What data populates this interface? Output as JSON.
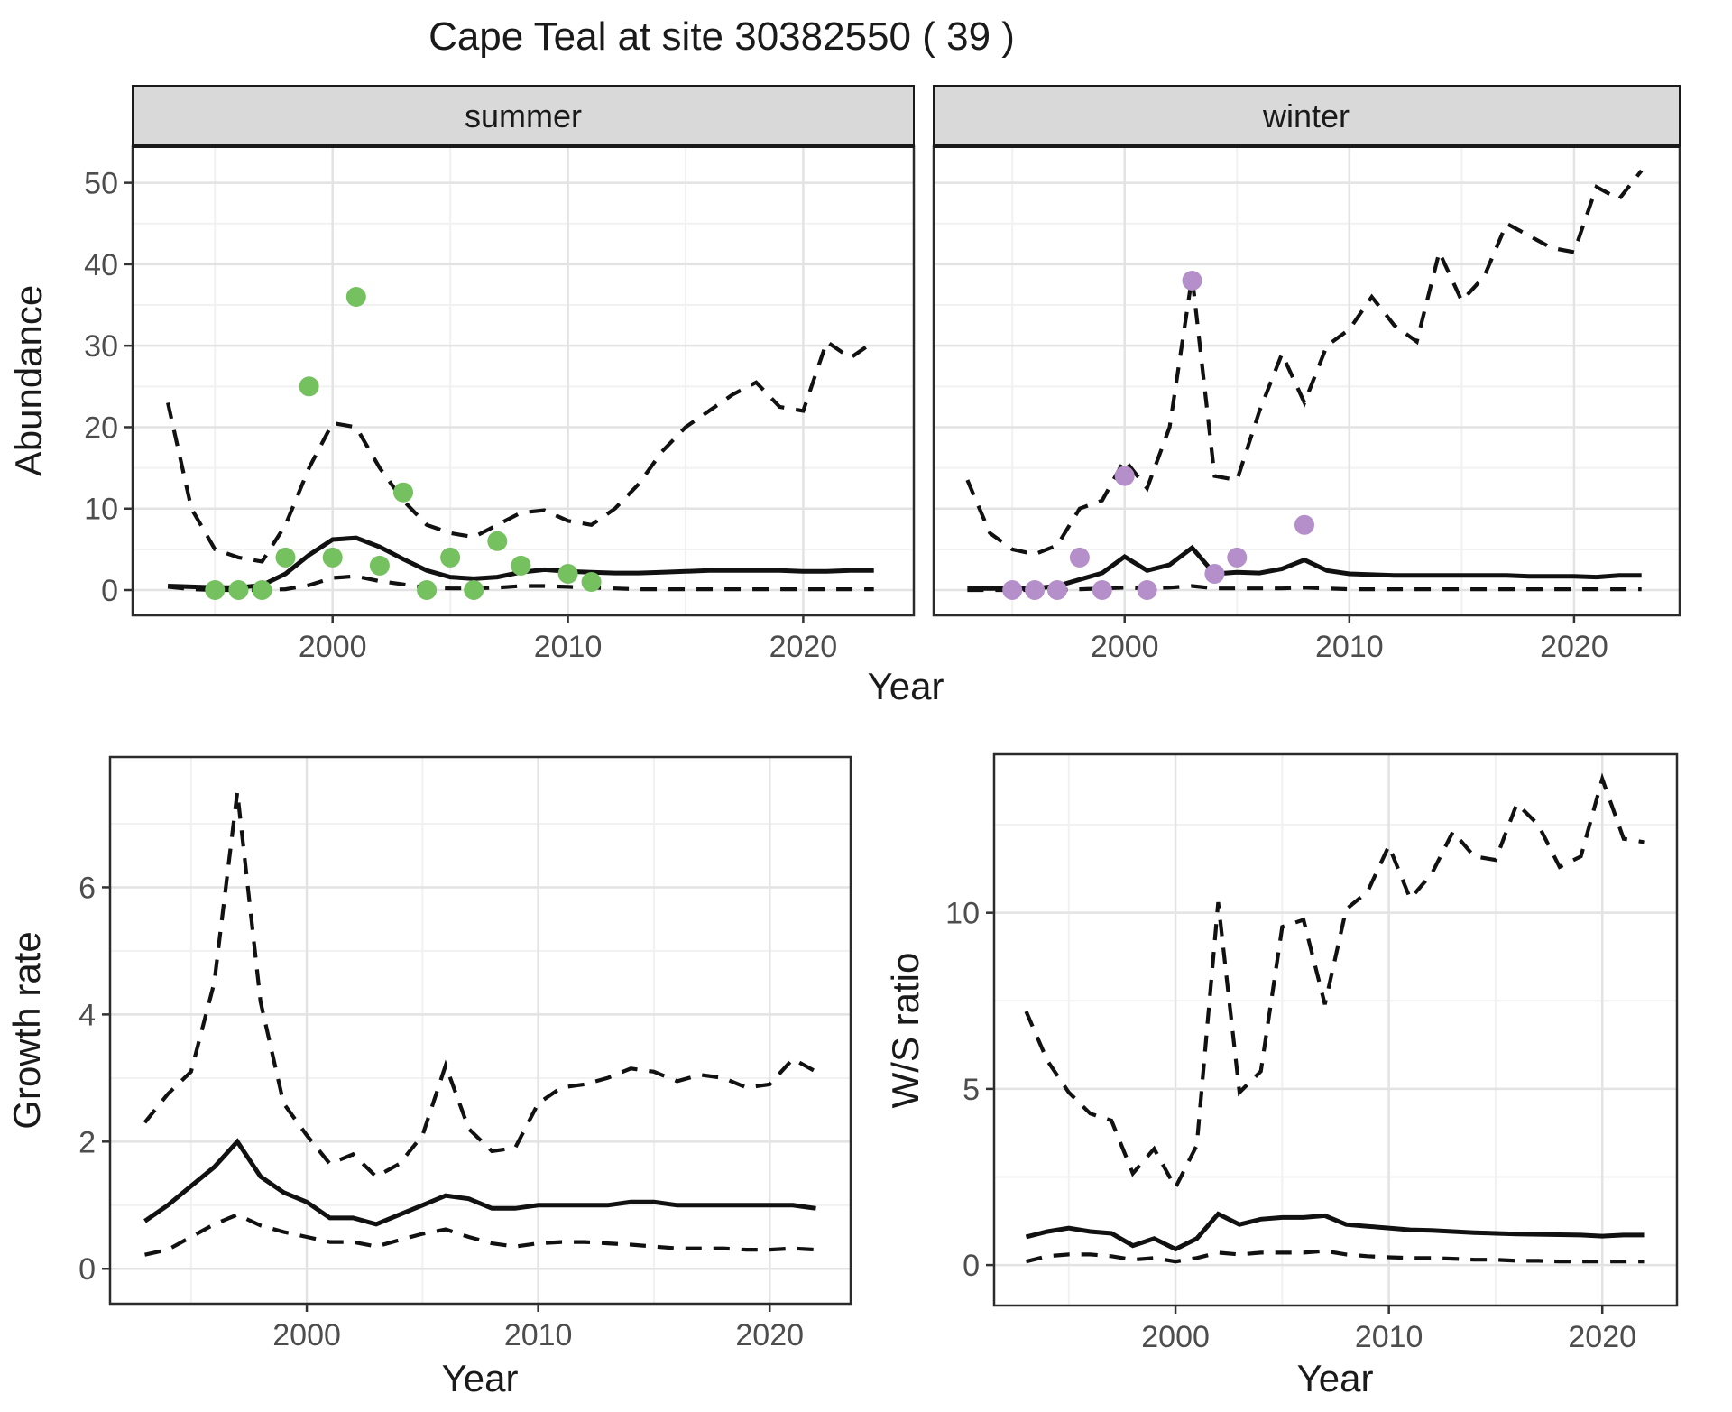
{
  "figure": {
    "title": "Cape Teal at site 30382550 ( 39 )"
  },
  "axes": {
    "top_y_label": "Abundance",
    "top_x_label": "Year",
    "bottom_left_y_label": "Growth rate",
    "bottom_left_x_label": "Year",
    "bottom_right_y_label": "W/S ratio",
    "bottom_right_x_label": "Year"
  },
  "style": {
    "point_color_summer": "#75C05F",
    "point_color_winter": "#B58FC9",
    "line_color": "#111111",
    "grid_major_color": "#E3E3E3",
    "grid_minor_color": "#F1F1F1",
    "panel_border_color": "#2B2B2B",
    "strip_fill": "#D9D9D9",
    "strip_border": "#1A1A1A",
    "tick_color": "#333333",
    "tick_label_color": "#4D4D4D",
    "panel_bg": "#FFFFFF"
  },
  "chart_data": [
    {
      "id": "abundance-summer",
      "type": "line",
      "facet": "summer",
      "ylabel": "Abundance",
      "xlabel": "Year",
      "xlim": [
        1991.5,
        2024.7
      ],
      "ylim": [
        -3.1,
        54.5
      ],
      "xticks": [
        2000,
        2010,
        2020
      ],
      "xminor": [
        1995,
        2005,
        2015
      ],
      "yticks": [
        0,
        10,
        20,
        30,
        40,
        50
      ],
      "yminor": [
        5,
        15,
        25,
        35,
        45
      ],
      "show_y_tick_labels": true,
      "x": [
        1993,
        1994,
        1995,
        1996,
        1997,
        1998,
        1999,
        2000,
        2001,
        2002,
        2003,
        2004,
        2005,
        2006,
        2007,
        2008,
        2009,
        2010,
        2011,
        2012,
        2013,
        2014,
        2015,
        2016,
        2017,
        2018,
        2019,
        2020,
        2021,
        2022,
        2023
      ],
      "series": [
        {
          "name": "lower_ci",
          "style": "dashed",
          "values": [
            0.4,
            0.1,
            0,
            0,
            0,
            0.1,
            0.6,
            1.5,
            1.7,
            1.1,
            0.7,
            0.3,
            0.2,
            0.2,
            0.3,
            0.5,
            0.5,
            0.4,
            0.3,
            0.2,
            0.1,
            0.1,
            0.1,
            0.1,
            0.1,
            0.1,
            0.1,
            0.1,
            0.1,
            0.1,
            0.1
          ]
        },
        {
          "name": "upper_ci",
          "style": "dashed",
          "values": [
            23,
            10,
            5,
            4,
            3.5,
            8,
            15,
            20.5,
            20,
            15,
            11,
            8,
            7,
            6.5,
            8,
            9.5,
            9.8,
            8.5,
            8,
            10,
            13,
            17,
            20,
            22,
            24,
            25.5,
            22.5,
            22,
            30.5,
            28.5,
            30.5
          ]
        },
        {
          "name": "model_fit",
          "style": "solid",
          "values": [
            0.5,
            0.4,
            0.3,
            0.3,
            0.6,
            2.0,
            4.3,
            6.2,
            6.4,
            5.3,
            3.8,
            2.4,
            1.6,
            1.4,
            1.6,
            2.2,
            2.5,
            2.3,
            2.2,
            2.1,
            2.1,
            2.2,
            2.3,
            2.4,
            2.4,
            2.4,
            2.4,
            2.3,
            2.3,
            2.4,
            2.4
          ]
        }
      ],
      "points": {
        "name": "summer-counts",
        "color_key": "point_color_summer",
        "x": [
          1995,
          1996,
          1997,
          1998,
          1999,
          2000,
          2001,
          2002,
          2003,
          2004,
          2005,
          2006,
          2007,
          2008,
          2010,
          2011
        ],
        "y": [
          0,
          0,
          0,
          4,
          25,
          4,
          36,
          3,
          12,
          0,
          4,
          0,
          6,
          3,
          2,
          1
        ]
      }
    },
    {
      "id": "abundance-winter",
      "type": "line",
      "facet": "winter",
      "ylabel": "Abundance",
      "xlabel": "Year",
      "xlim": [
        1991.5,
        2024.7
      ],
      "ylim": [
        -3.1,
        54.5
      ],
      "xticks": [
        2000,
        2010,
        2020
      ],
      "xminor": [
        1995,
        2005,
        2015
      ],
      "yticks": [
        0,
        10,
        20,
        30,
        40,
        50
      ],
      "yminor": [
        5,
        15,
        25,
        35,
        45
      ],
      "show_y_tick_labels": false,
      "x": [
        1993,
        1994,
        1995,
        1996,
        1997,
        1998,
        1999,
        2000,
        2001,
        2002,
        2003,
        2004,
        2005,
        2006,
        2007,
        2008,
        2009,
        2010,
        2011,
        2012,
        2013,
        2014,
        2015,
        2016,
        2017,
        2018,
        2019,
        2020,
        2021,
        2022,
        2023
      ],
      "series": [
        {
          "name": "lower_ci",
          "style": "dashed",
          "values": [
            0,
            0,
            0,
            0,
            0,
            0.1,
            0.2,
            0.3,
            0.2,
            0.3,
            0.5,
            0.2,
            0.2,
            0.2,
            0.2,
            0.3,
            0.2,
            0.1,
            0.1,
            0.1,
            0.1,
            0.1,
            0.1,
            0.1,
            0.1,
            0.1,
            0.1,
            0.1,
            0.1,
            0.1,
            0.1
          ]
        },
        {
          "name": "upper_ci",
          "style": "dashed",
          "values": [
            13.5,
            7,
            5,
            4.4,
            5.5,
            10,
            11,
            16,
            12.5,
            20,
            38.5,
            14,
            13.5,
            22,
            29,
            23,
            30,
            32,
            36,
            32.5,
            30.5,
            41.5,
            35.5,
            38.5,
            45,
            43.5,
            42,
            41.5,
            49.5,
            48,
            51.5
          ]
        },
        {
          "name": "model_fit",
          "style": "solid",
          "values": [
            0.2,
            0.2,
            0.2,
            0.2,
            0.5,
            1.3,
            2.1,
            4.1,
            2.4,
            3.1,
            5.2,
            2.0,
            2.2,
            2.1,
            2.6,
            3.7,
            2.4,
            2.0,
            1.9,
            1.8,
            1.8,
            1.8,
            1.8,
            1.8,
            1.8,
            1.7,
            1.7,
            1.7,
            1.6,
            1.8,
            1.8
          ]
        }
      ],
      "points": {
        "name": "winter-counts",
        "color_key": "point_color_winter",
        "x": [
          1995,
          1996,
          1997,
          1998,
          1999,
          2000,
          2001,
          2003,
          2004,
          2005,
          2008
        ],
        "y": [
          0,
          0,
          0,
          4,
          0,
          14,
          0,
          38,
          2,
          4,
          8
        ]
      }
    },
    {
      "id": "growth-rate",
      "type": "line",
      "facet": null,
      "ylabel": "Growth rate",
      "xlabel": "Year",
      "xlim": [
        1991.5,
        2023.5
      ],
      "ylim": [
        -0.55,
        8.05
      ],
      "xticks": [
        2000,
        2010,
        2020
      ],
      "xminor": [
        1995,
        2005,
        2015
      ],
      "yticks": [
        0,
        2,
        4,
        6
      ],
      "yminor": [
        1,
        3,
        5,
        7
      ],
      "show_y_tick_labels": true,
      "x": [
        1993,
        1994,
        1995,
        1996,
        1997,
        1998,
        1999,
        2000,
        2001,
        2002,
        2003,
        2004,
        2005,
        2006,
        2007,
        2008,
        2009,
        2010,
        2011,
        2012,
        2013,
        2014,
        2015,
        2016,
        2017,
        2018,
        2019,
        2020,
        2021,
        2022
      ],
      "series": [
        {
          "name": "lower_ci",
          "style": "dashed",
          "values": [
            0.22,
            0.3,
            0.5,
            0.7,
            0.85,
            0.68,
            0.58,
            0.5,
            0.42,
            0.42,
            0.35,
            0.45,
            0.55,
            0.62,
            0.5,
            0.4,
            0.35,
            0.4,
            0.42,
            0.42,
            0.4,
            0.38,
            0.35,
            0.32,
            0.32,
            0.32,
            0.3,
            0.3,
            0.32,
            0.3
          ]
        },
        {
          "name": "upper_ci",
          "style": "dashed",
          "values": [
            2.3,
            2.75,
            3.1,
            4.5,
            7.5,
            4.2,
            2.6,
            2.1,
            1.65,
            1.8,
            1.45,
            1.65,
            2.1,
            3.2,
            2.2,
            1.85,
            1.9,
            2.6,
            2.85,
            2.9,
            3.0,
            3.15,
            3.1,
            2.95,
            3.05,
            3.0,
            2.85,
            2.9,
            3.3,
            3.1
          ]
        },
        {
          "name": "model_fit",
          "style": "solid",
          "values": [
            0.75,
            1.0,
            1.3,
            1.6,
            2.0,
            1.45,
            1.2,
            1.05,
            0.8,
            0.8,
            0.7,
            0.85,
            1.0,
            1.15,
            1.1,
            0.95,
            0.95,
            1.0,
            1.0,
            1.0,
            1.0,
            1.05,
            1.05,
            1.0,
            1.0,
            1.0,
            1.0,
            1.0,
            1.0,
            0.95
          ]
        }
      ],
      "points": null
    },
    {
      "id": "ws-ratio",
      "type": "line",
      "facet": null,
      "ylabel": "W/S ratio",
      "xlabel": "Year",
      "xlim": [
        1991.5,
        2023.5
      ],
      "ylim": [
        -1.15,
        14.5
      ],
      "xticks": [
        2000,
        2010,
        2020
      ],
      "xminor": [
        1995,
        2005,
        2015
      ],
      "yticks": [
        0,
        5,
        10
      ],
      "yminor": [
        2.5,
        7.5,
        12.5
      ],
      "show_y_tick_labels": true,
      "x": [
        1993,
        1994,
        1995,
        1996,
        1997,
        1998,
        1999,
        2000,
        2001,
        2002,
        2003,
        2004,
        2005,
        2006,
        2007,
        2008,
        2009,
        2010,
        2011,
        2012,
        2013,
        2014,
        2015,
        2016,
        2017,
        2018,
        2019,
        2020,
        2021,
        2022
      ],
      "series": [
        {
          "name": "lower_ci",
          "style": "dashed",
          "values": [
            0.1,
            0.25,
            0.3,
            0.3,
            0.25,
            0.15,
            0.2,
            0.1,
            0.2,
            0.35,
            0.3,
            0.35,
            0.35,
            0.35,
            0.4,
            0.3,
            0.25,
            0.22,
            0.2,
            0.2,
            0.18,
            0.15,
            0.15,
            0.12,
            0.12,
            0.1,
            0.1,
            0.1,
            0.1,
            0.1
          ]
        },
        {
          "name": "upper_ci",
          "style": "dashed",
          "values": [
            7.2,
            5.8,
            4.9,
            4.3,
            4.1,
            2.6,
            3.3,
            2.2,
            3.4,
            10.3,
            4.9,
            5.5,
            9.6,
            9.8,
            7.4,
            10.1,
            10.6,
            11.9,
            10.4,
            11.1,
            12.3,
            11.6,
            11.5,
            13.1,
            12.5,
            11.3,
            11.6,
            13.8,
            12.1,
            12.0
          ]
        },
        {
          "name": "model_fit",
          "style": "solid",
          "values": [
            0.8,
            0.95,
            1.05,
            0.95,
            0.9,
            0.55,
            0.75,
            0.45,
            0.75,
            1.45,
            1.15,
            1.3,
            1.35,
            1.35,
            1.4,
            1.15,
            1.1,
            1.05,
            1.0,
            0.98,
            0.95,
            0.92,
            0.9,
            0.88,
            0.87,
            0.86,
            0.85,
            0.82,
            0.85,
            0.85
          ]
        }
      ],
      "points": null
    }
  ]
}
